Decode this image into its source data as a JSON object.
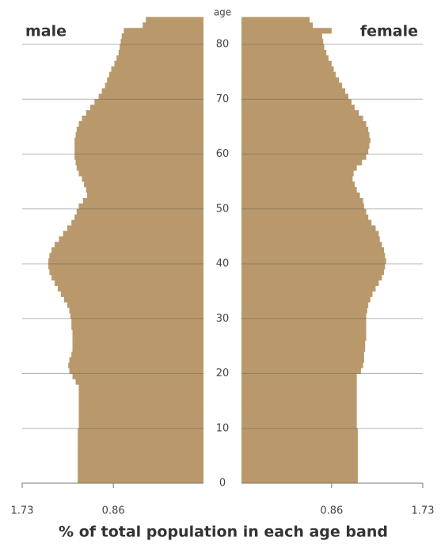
{
  "chart_data": {
    "type": "pyramid",
    "x_label": "% of total population in each age band",
    "y_label": "age",
    "categories": [
      0,
      1,
      2,
      3,
      4,
      5,
      6,
      7,
      8,
      9,
      10,
      11,
      12,
      13,
      14,
      15,
      16,
      17,
      18,
      19,
      20,
      21,
      22,
      23,
      24,
      25,
      26,
      27,
      28,
      29,
      30,
      31,
      32,
      33,
      34,
      35,
      36,
      37,
      38,
      39,
      40,
      41,
      42,
      43,
      44,
      45,
      46,
      47,
      48,
      49,
      50,
      51,
      52,
      53,
      54,
      55,
      56,
      57,
      58,
      59,
      60,
      61,
      62,
      63,
      64,
      65,
      66,
      67,
      68,
      69,
      70,
      71,
      72,
      73,
      74,
      75,
      76,
      77,
      78,
      79,
      80,
      81,
      82,
      83,
      84
    ],
    "series": [
      {
        "name": "male",
        "color": "#b9996b",
        "values": [
          1.2,
          1.2,
          1.2,
          1.2,
          1.2,
          1.2,
          1.2,
          1.2,
          1.2,
          1.2,
          1.19,
          1.19,
          1.19,
          1.19,
          1.19,
          1.19,
          1.19,
          1.19,
          1.22,
          1.25,
          1.28,
          1.29,
          1.28,
          1.26,
          1.25,
          1.25,
          1.25,
          1.25,
          1.26,
          1.26,
          1.27,
          1.28,
          1.3,
          1.33,
          1.36,
          1.39,
          1.42,
          1.45,
          1.47,
          1.48,
          1.48,
          1.47,
          1.45,
          1.42,
          1.38,
          1.34,
          1.3,
          1.26,
          1.23,
          1.21,
          1.19,
          1.15,
          1.11,
          1.12,
          1.14,
          1.16,
          1.19,
          1.21,
          1.22,
          1.23,
          1.23,
          1.23,
          1.23,
          1.22,
          1.21,
          1.19,
          1.16,
          1.12,
          1.08,
          1.04,
          1.0,
          0.97,
          0.94,
          0.92,
          0.9,
          0.88,
          0.85,
          0.83,
          0.81,
          0.8,
          0.79,
          0.78,
          0.76,
          0.58,
          0.55
        ]
      },
      {
        "name": "female",
        "color": "#b9996b",
        "values": [
          1.11,
          1.11,
          1.11,
          1.11,
          1.11,
          1.11,
          1.11,
          1.11,
          1.11,
          1.11,
          1.1,
          1.1,
          1.1,
          1.1,
          1.1,
          1.1,
          1.1,
          1.1,
          1.1,
          1.1,
          1.14,
          1.16,
          1.17,
          1.17,
          1.18,
          1.18,
          1.19,
          1.19,
          1.19,
          1.19,
          1.19,
          1.2,
          1.21,
          1.23,
          1.25,
          1.28,
          1.31,
          1.34,
          1.36,
          1.37,
          1.38,
          1.37,
          1.36,
          1.34,
          1.32,
          1.31,
          1.28,
          1.24,
          1.21,
          1.19,
          1.17,
          1.16,
          1.13,
          1.1,
          1.08,
          1.06,
          1.07,
          1.1,
          1.15,
          1.19,
          1.21,
          1.22,
          1.23,
          1.22,
          1.21,
          1.19,
          1.16,
          1.12,
          1.08,
          1.05,
          1.02,
          0.99,
          0.96,
          0.93,
          0.9,
          0.88,
          0.86,
          0.83,
          0.81,
          0.79,
          0.78,
          0.77,
          0.86,
          0.68,
          0.65
        ]
      }
    ],
    "ylim": [
      0,
      85
    ],
    "yticks": [
      0,
      10,
      20,
      30,
      40,
      50,
      60,
      70,
      80
    ],
    "xlim": [
      0,
      1.73
    ],
    "xticks": [
      0.86,
      1.73
    ],
    "grid": true
  }
}
